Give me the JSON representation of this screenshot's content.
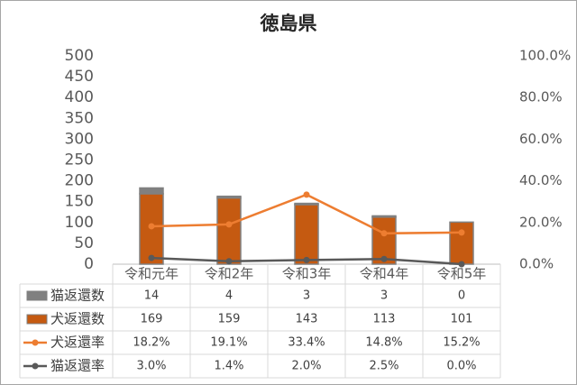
{
  "chart_data": {
    "type": "bar",
    "title": "徳島県",
    "stacked": true,
    "data_table": true,
    "grid": false,
    "categories": [
      "令和元年",
      "令和2年",
      "令和3年",
      "令和4年",
      "令和5年"
    ],
    "series": [
      {
        "name": "猫返還数",
        "color": "#808080",
        "values": [
          14,
          4,
          3,
          3,
          0
        ]
      },
      {
        "name": "犬返還数",
        "color": "#c55a11",
        "values": [
          169,
          159,
          143,
          113,
          101
        ]
      },
      {
        "name": "犬返還率",
        "color": "#ed7d31",
        "type": "line",
        "axis": "y2",
        "values": [
          18.2,
          19.1,
          33.4,
          14.8,
          15.2
        ],
        "value_labels": [
          "18.2%",
          "19.1%",
          "33.4%",
          "14.8%",
          "15.2%"
        ]
      },
      {
        "name": "猫返還率",
        "color": "#595959",
        "type": "line",
        "axis": "y2",
        "values": [
          3.0,
          1.4,
          2.0,
          2.5,
          0.0
        ],
        "value_labels": [
          "3.0%",
          "1.4%",
          "2.0%",
          "2.5%",
          "0.0%"
        ]
      }
    ],
    "ylim": [
      0,
      500
    ],
    "yticks": [
      0,
      50,
      100,
      150,
      200,
      250,
      300,
      350,
      400,
      450,
      500
    ],
    "y2lim": [
      0,
      100
    ],
    "y2ticks": [
      {
        "value": 0,
        "label": "0.0%"
      },
      {
        "value": 20,
        "label": "20.0%"
      },
      {
        "value": 40,
        "label": "40.0%"
      },
      {
        "value": 60,
        "label": "60.0%"
      },
      {
        "value": 80,
        "label": "80.0%"
      },
      {
        "value": 100,
        "label": "100.0%"
      }
    ]
  }
}
